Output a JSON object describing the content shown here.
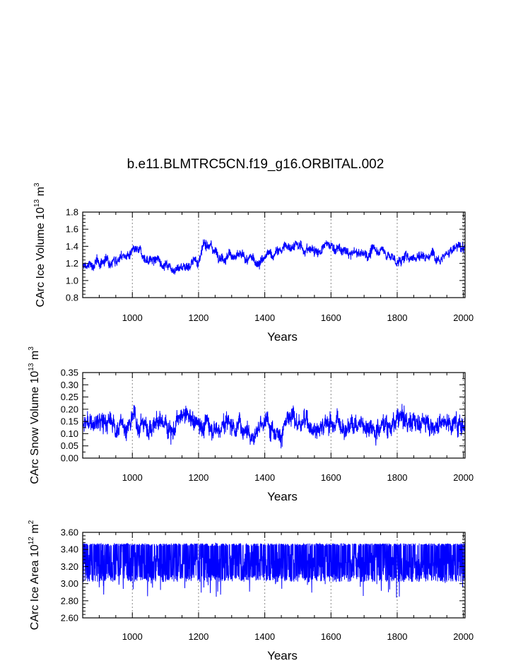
{
  "chart_data": [
    {
      "type": "line",
      "title": "b.e11.BLMTRC5CN.f19_g16.ORBITAL.002",
      "xlabel": "Years",
      "ylabel": {
        "prefix": "CArc Ice Volume 10",
        "exp": "13",
        "unit": " m",
        "unit_exp": "3"
      },
      "xlim": [
        850,
        2005
      ],
      "ylim": [
        0.8,
        1.8
      ],
      "xticks": [
        "1000",
        "1200",
        "1400",
        "1600",
        "1800",
        "2000"
      ],
      "xtick_values": [
        1000,
        1200,
        1400,
        1600,
        1800,
        2000
      ],
      "yticks": [
        "0.8",
        "1.0",
        "1.2",
        "1.4",
        "1.6",
        "1.8"
      ],
      "ytick_values": [
        0.8,
        1.0,
        1.2,
        1.4,
        1.6,
        1.8
      ],
      "x": [
        850,
        900,
        950,
        1000,
        1050,
        1100,
        1150,
        1200,
        1230,
        1250,
        1300,
        1350,
        1400,
        1450,
        1490,
        1500,
        1550,
        1600,
        1650,
        1700,
        1750,
        1800,
        1850,
        1900,
        1950,
        2000,
        2005
      ],
      "values": [
        1.15,
        1.2,
        1.3,
        1.3,
        1.25,
        1.2,
        1.18,
        1.25,
        1.45,
        1.35,
        1.32,
        1.2,
        1.25,
        1.35,
        1.45,
        1.38,
        1.35,
        1.4,
        1.3,
        1.3,
        1.38,
        1.22,
        1.3,
        1.32,
        1.35,
        1.38,
        1.4
      ],
      "noise": 0.08,
      "series_color": "#0000ff"
    },
    {
      "type": "line",
      "xlabel": "Years",
      "ylabel": {
        "prefix": "CArc Snow Volume 10",
        "exp": "13",
        "unit": " m",
        "unit_exp": "3"
      },
      "xlim": [
        850,
        2005
      ],
      "ylim": [
        0.0,
        0.35
      ],
      "xticks": [
        "1000",
        "1200",
        "1400",
        "1600",
        "1800",
        "2000"
      ],
      "xtick_values": [
        1000,
        1200,
        1400,
        1600,
        1800,
        2000
      ],
      "yticks": [
        "0.00",
        "0.05",
        "0.10",
        "0.15",
        "0.20",
        "0.25",
        "0.30",
        "0.35"
      ],
      "ytick_values": [
        0.0,
        0.05,
        0.1,
        0.15,
        0.2,
        0.25,
        0.3,
        0.35
      ],
      "x": [
        850,
        1000,
        1200,
        1400,
        1600,
        1800,
        1950,
        2005
      ],
      "values": [
        0.13,
        0.14,
        0.15,
        0.14,
        0.15,
        0.15,
        0.16,
        0.15
      ],
      "noise": 0.055,
      "series_color": "#0000ff"
    },
    {
      "type": "line",
      "xlabel": "Years",
      "ylabel": {
        "prefix": "CArc Ice Area 10",
        "exp": "12",
        "unit": " m",
        "unit_exp": "2"
      },
      "xlim": [
        850,
        2005
      ],
      "ylim": [
        2.6,
        3.6
      ],
      "xticks": [
        "1000",
        "1200",
        "1400",
        "1600",
        "1800",
        "2000"
      ],
      "xtick_values": [
        1000,
        1200,
        1400,
        1600,
        1800,
        2000
      ],
      "yticks": [
        "2.60",
        "2.80",
        "3.00",
        "3.20",
        "3.40",
        "3.60"
      ],
      "ytick_values": [
        2.6,
        2.8,
        3.0,
        3.2,
        3.4,
        3.6
      ],
      "x": [
        850,
        2005
      ],
      "values": [
        3.25,
        3.25
      ],
      "band": [
        3.02,
        3.47
      ],
      "noise": 0.12,
      "series_color": "#0000ff"
    }
  ]
}
